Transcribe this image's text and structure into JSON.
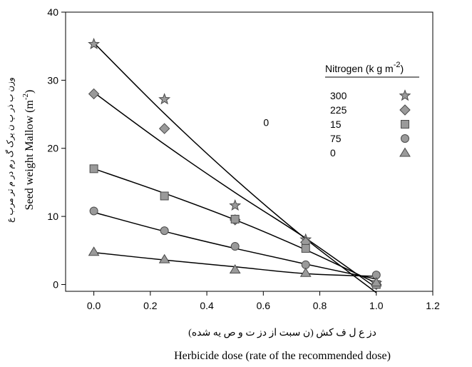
{
  "chart_data": {
    "type": "scatter",
    "title": "",
    "xlabel": "Herbicide dose (rate of the recommended dose)",
    "xlabel_fa": "دز ع ل ف کش (ن سبت از دز ت و ص یه شده)",
    "ylabel": "Seed weight Mallow (m",
    "ylabel_sup": "-2",
    "ylabel_end": ")",
    "ylabel_fa": "وزن ب ذر پ ن یرک گ رم در م تر مرب ع",
    "xlim": [
      -0.1,
      1.2
    ],
    "ylim": [
      -1,
      40
    ],
    "xticks": [
      "0.0",
      "0.2",
      "0.4",
      "0.6",
      "0.8",
      "1.0",
      "1.2"
    ],
    "yticks": [
      "0",
      "10",
      "20",
      "30",
      "40"
    ],
    "grid": false,
    "legend": {
      "title": "Nitrogen (k g m",
      "title_sup": "-2",
      "title_end": ")",
      "placement": "top-right"
    },
    "stray_mark": {
      "x": 0.61,
      "y": 23.8,
      "text": "0"
    },
    "series": [
      {
        "name": "300",
        "marker": "star",
        "color": "#9a9a9a",
        "x": [
          0,
          0.25,
          0.5,
          0.75,
          1.0
        ],
        "y": [
          35.3,
          27.2,
          11.6,
          6.6,
          0.2
        ],
        "fit": [
          35.5,
          25.1,
          15.5,
          6.7,
          -1.2
        ]
      },
      {
        "name": "225",
        "marker": "diamond",
        "color": "#9a9a9a",
        "x": [
          0,
          0.25,
          0.5,
          0.75,
          1.0
        ],
        "y": [
          28.0,
          22.9,
          9.5,
          6.2,
          0.0
        ],
        "fit": [
          28.2,
          20.6,
          13.5,
          6.8,
          -0.5
        ]
      },
      {
        "name": "15",
        "marker": "square",
        "color": "#9a9a9a",
        "x": [
          0,
          0.25,
          0.5,
          0.75,
          1.0
        ],
        "y": [
          17.0,
          13.0,
          9.6,
          5.3,
          0.0
        ],
        "fit": [
          17.0,
          13.4,
          9.5,
          5.1,
          0.2
        ]
      },
      {
        "name": "75",
        "marker": "circle",
        "color": "#9a9a9a",
        "x": [
          0,
          0.25,
          0.5,
          0.75,
          1.0
        ],
        "y": [
          10.8,
          7.9,
          5.6,
          2.9,
          1.4
        ],
        "fit": [
          10.6,
          7.8,
          5.3,
          3.0,
          0.8
        ]
      },
      {
        "name": "0",
        "marker": "triangle",
        "color": "#9a9a9a",
        "x": [
          0,
          0.25,
          0.5,
          0.75,
          1.0
        ],
        "y": [
          4.8,
          3.7,
          2.2,
          1.7,
          0.3
        ],
        "fit": [
          4.7,
          3.6,
          2.6,
          1.6,
          1.2
        ]
      }
    ]
  }
}
